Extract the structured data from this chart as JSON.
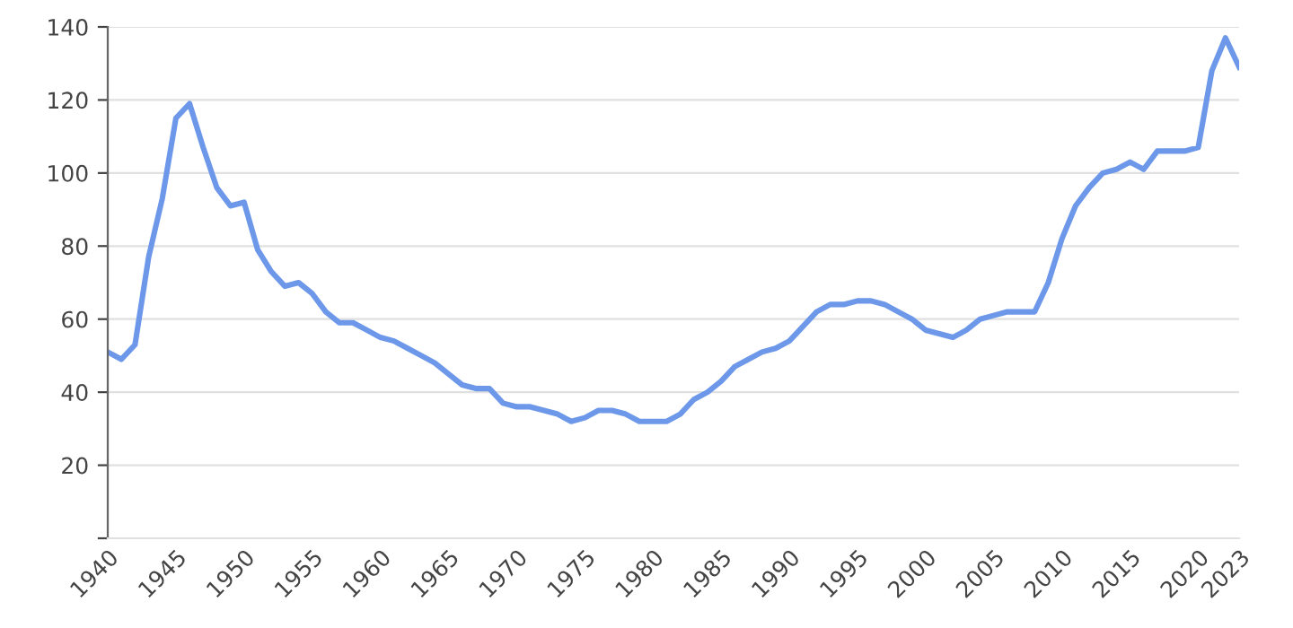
{
  "chart_data": {
    "type": "line",
    "x": [
      1940,
      1941,
      1942,
      1943,
      1944,
      1945,
      1946,
      1947,
      1948,
      1949,
      1950,
      1951,
      1952,
      1953,
      1954,
      1955,
      1956,
      1957,
      1958,
      1959,
      1960,
      1961,
      1962,
      1963,
      1964,
      1965,
      1966,
      1967,
      1968,
      1969,
      1970,
      1971,
      1972,
      1973,
      1974,
      1975,
      1976,
      1977,
      1978,
      1979,
      1980,
      1981,
      1982,
      1983,
      1984,
      1985,
      1986,
      1987,
      1988,
      1989,
      1990,
      1991,
      1992,
      1993,
      1994,
      1995,
      1996,
      1997,
      1998,
      1999,
      2000,
      2001,
      2002,
      2003,
      2004,
      2005,
      2006,
      2007,
      2008,
      2009,
      2010,
      2011,
      2012,
      2013,
      2014,
      2015,
      2016,
      2017,
      2018,
      2019,
      2020,
      2021,
      2022,
      2023
    ],
    "series": [
      {
        "color": "#6d98ea",
        "values": [
          51,
          49,
          53,
          77,
          93,
          115,
          119,
          107,
          96,
          91,
          92,
          79,
          73,
          69,
          70,
          67,
          62,
          59,
          59,
          57,
          55,
          54,
          52,
          50,
          48,
          45,
          42,
          41,
          41,
          37,
          36,
          36,
          35,
          34,
          32,
          33,
          35,
          35,
          34,
          32,
          32,
          32,
          34,
          38,
          40,
          43,
          47,
          49,
          51,
          52,
          54,
          58,
          62,
          64,
          64,
          65,
          65,
          64,
          62,
          60,
          57,
          56,
          55,
          57,
          60,
          61,
          62,
          62,
          62,
          70,
          82,
          91,
          96,
          100,
          101,
          103,
          101,
          106,
          106,
          106,
          107,
          128,
          137,
          129
        ]
      }
    ],
    "xlim": [
      1940,
      2023
    ],
    "xticks": [
      1940,
      1945,
      1950,
      1955,
      1960,
      1965,
      1970,
      1975,
      1980,
      1985,
      1990,
      1995,
      2000,
      2005,
      2010,
      2015,
      2020,
      2023
    ],
    "ylim": [
      0,
      140
    ],
    "yticks": [
      {
        "value": 0,
        "label": null
      },
      20,
      40,
      60,
      80,
      100,
      120,
      140
    ],
    "grid": "y",
    "line_style": "solid",
    "marker": "none"
  }
}
